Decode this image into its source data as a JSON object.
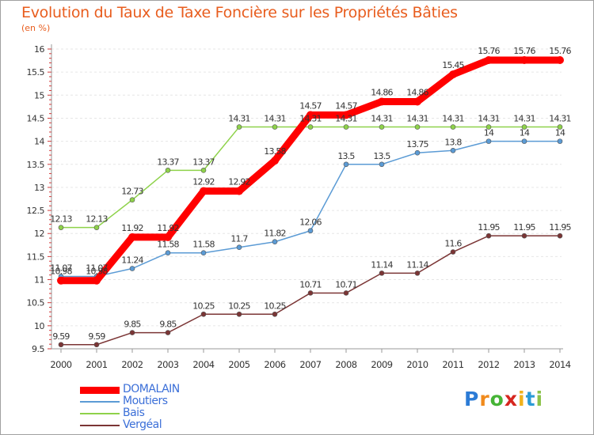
{
  "title": "Evolution du Taux de Taxe Foncière sur les Propriétés Bâties",
  "unit": "(en %)",
  "logo": {
    "letters": [
      "P",
      "r",
      "o",
      "x",
      "i",
      "t",
      "i"
    ],
    "colors": [
      "#2b7bd6",
      "#f08a1c",
      "#46b436",
      "#d6261f",
      "#f0b21c",
      "#2b9bd6",
      "#8bc34a"
    ]
  },
  "chart_data": {
    "type": "line",
    "title": "Evolution du Taux de Taxe Foncière sur les Propriétés Bâties",
    "ylabel": "(en %)",
    "xlabel": "",
    "x": [
      "2000",
      "2001",
      "2002",
      "2003",
      "2004",
      "2005",
      "2006",
      "2007",
      "2008",
      "2009",
      "2010",
      "2011",
      "2012",
      "2013",
      "2014"
    ],
    "ylim": [
      9.5,
      16
    ],
    "yticks": [
      "9.5",
      "10",
      "10.5",
      "11",
      "11.5",
      "12",
      "12.5",
      "13",
      "13.5",
      "14",
      "14.5",
      "15",
      "15.5",
      "16"
    ],
    "grid": "y",
    "legend": "bottom-left",
    "series": [
      {
        "name": "DOMALAIN",
        "color": "#ff0000",
        "width": 9,
        "values": [
          10.98,
          10.98,
          11.92,
          11.92,
          12.92,
          12.92,
          13.58,
          14.57,
          14.57,
          14.86,
          14.86,
          15.45,
          15.76,
          15.76,
          15.76
        ],
        "labels": [
          "10.98",
          "10.98",
          "11.92",
          "11.92",
          "12.92",
          "12.92",
          "13.58",
          "14.57",
          "14.57",
          "14.86",
          "14.86",
          "15.45",
          "15.76",
          "15.76",
          "15.76"
        ]
      },
      {
        "name": "Moutiers",
        "color": "#5b9bd5",
        "width": 1.5,
        "values": [
          11.07,
          11.07,
          11.24,
          11.58,
          11.58,
          11.7,
          11.82,
          12.06,
          13.5,
          13.5,
          13.75,
          13.8,
          14,
          14,
          14
        ],
        "labels": [
          "11.07",
          "11.07",
          "11.24",
          "11.58",
          "11.58",
          "11.7",
          "11.82",
          "12.06",
          "13.5",
          "13.5",
          "13.75",
          "13.8",
          "14",
          "14",
          "14"
        ]
      },
      {
        "name": "Bais",
        "color": "#8ed24a",
        "width": 1.5,
        "values": [
          12.13,
          12.13,
          12.73,
          13.37,
          13.37,
          14.31,
          14.31,
          14.31,
          14.31,
          14.31,
          14.31,
          14.31,
          14.31,
          14.31,
          14.31
        ],
        "labels": [
          "12.13",
          "12.13",
          "12.73",
          "13.37",
          "13.37",
          "14.31",
          "14.31",
          "14.31",
          "14.31",
          "14.31",
          "14.31",
          "14.31",
          "14.31",
          "14.31",
          "14.31"
        ]
      },
      {
        "name": "Vergéal",
        "color": "#7b3535",
        "width": 1.5,
        "values": [
          9.59,
          9.59,
          9.85,
          9.85,
          10.25,
          10.25,
          10.25,
          10.71,
          10.71,
          11.14,
          11.14,
          11.6,
          11.95,
          11.95,
          11.95
        ],
        "labels": [
          "9.59",
          "9.59",
          "9.85",
          "9.85",
          "10.25",
          "10.25",
          "10.25",
          "10.71",
          "10.71",
          "11.14",
          "11.14",
          "11.6",
          "11.95",
          "11.95",
          "11.95"
        ]
      }
    ]
  }
}
